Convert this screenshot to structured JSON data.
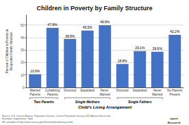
{
  "chart_data": {
    "type": "bar",
    "title": "Children in Poverty by Family Structure",
    "xlabel": "Child's Living Arrangement",
    "ylabel": "Percent of Children in Poverty in Respective Family Structure",
    "categories": [
      "Married\nParents",
      "Cohabiting\nParents",
      "Divorced",
      "Separated",
      "Never Married",
      "Divorced",
      "Separated",
      "Never\nMarried",
      "No Parents\nPresent"
    ],
    "values": [
      10.6,
      47.8,
      38.8,
      45.5,
      49.8,
      18.8,
      29.1,
      28.6,
      42.2
    ],
    "value_labels": [
      "10.6%",
      "47.8%",
      "38.8%",
      "45.5%",
      "49.8%",
      "18.8%",
      "29.1%",
      "28.6%",
      "42.2%"
    ],
    "data_labels": true,
    "color": "#4472C4",
    "ylim": [
      0,
      58
    ],
    "yticks": [
      0,
      10,
      20,
      30,
      40,
      50
    ],
    "grid": true,
    "groups": [
      {
        "label": "Two Parents",
        "start": 0,
        "end": 1
      },
      {
        "label": "Single Mothers",
        "start": 2,
        "end": 4
      },
      {
        "label": "Single Fathers",
        "start": 5,
        "end": 7
      }
    ],
    "source": "Source: U.S. Census Bureau, Population Division, Current Population Survey, 2011 Annual Social and Economic Supplement, Table\n6N, available at http://www.census.gov/hhes/families/data/cps.html.",
    "logo": "marri\nResearch"
  }
}
